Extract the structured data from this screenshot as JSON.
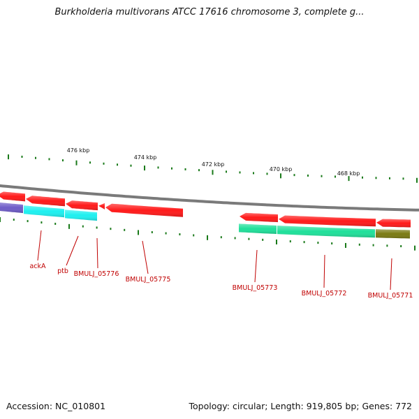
{
  "title": "Burkholderia multivorans ATCC 17616 chromosome 3, complete g...",
  "footer": {
    "accession": "Accession: NC_010801",
    "summary": "Topology: circular; Length: 919,805 bp; Genes: 772"
  },
  "colors": {
    "backbone": "#7a7a7a",
    "tick": "#1a7a1a",
    "gene_label": "#c00000",
    "gene_red": "#ff1a1a",
    "gene_cyan": "#1ef0f0",
    "gene_blue": "#6e5cc8",
    "gene_green": "#1fe09a",
    "gene_olive": "#7a7a12"
  },
  "kbp_labels": [
    "476 kbp",
    "474 kbp",
    "472 kbp",
    "470 kbp",
    "468 kbp"
  ],
  "gene_labels": [
    "ackA",
    "ptb",
    "BMULJ_05776",
    "BMULJ_05775",
    "BMULJ_05773",
    "BMULJ_05772",
    "BMULJ_05771"
  ]
}
